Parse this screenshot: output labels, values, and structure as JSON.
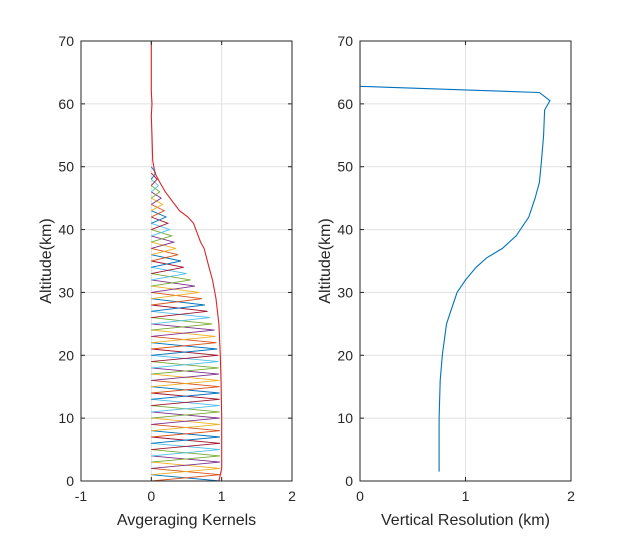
{
  "chart_data": [
    {
      "type": "line",
      "xlabel": "Avgeraging Kernels",
      "ylabel": "Altitude(km)",
      "xlim": [
        -1,
        2
      ],
      "ylim": [
        0,
        70
      ],
      "xticks": [
        "-1",
        "0",
        "1",
        "2"
      ],
      "yticks": [
        "0",
        "10",
        "20",
        "30",
        "40",
        "50",
        "60",
        "70"
      ],
      "grid": true,
      "kernels": {
        "count": 50,
        "spacing_km": 1,
        "colors": [
          "#0072bd",
          "#d95319",
          "#edb120",
          "#7e2f8e",
          "#77ac30",
          "#4dbeee",
          "#a2142f"
        ],
        "peak_profile": {
          "altitude": [
            0,
            15,
            20,
            24,
            27,
            30,
            33,
            36,
            40,
            44,
            48,
            51
          ],
          "peak": [
            0.98,
            0.97,
            0.95,
            0.9,
            0.8,
            0.68,
            0.5,
            0.38,
            0.26,
            0.16,
            0.08,
            0.03
          ]
        }
      },
      "series": [
        {
          "color": "#d62728",
          "points": [
            [
              0.96,
              0
            ],
            [
              1.0,
              2
            ],
            [
              1.0,
              10
            ],
            [
              0.99,
              16
            ],
            [
              0.98,
              20
            ],
            [
              0.96,
              25
            ],
            [
              0.92,
              29
            ],
            [
              0.87,
              32
            ],
            [
              0.82,
              34
            ],
            [
              0.75,
              37
            ],
            [
              0.7,
              38
            ],
            [
              0.6,
              41
            ],
            [
              0.52,
              42
            ],
            [
              0.4,
              43
            ],
            [
              0.3,
              44.5
            ],
            [
              0.2,
              46
            ],
            [
              0.12,
              47.5
            ],
            [
              0.05,
              49
            ],
            [
              0.02,
              51
            ],
            [
              0.01,
              55
            ],
            [
              0.0,
              58
            ],
            [
              0.01,
              60
            ],
            [
              0.0,
              62
            ],
            [
              0.0,
              70
            ]
          ]
        }
      ]
    },
    {
      "type": "line",
      "xlabel": "Vertical Resolution (km)",
      "ylabel": "Altitude(km)",
      "xlim": [
        0,
        2
      ],
      "ylim": [
        0,
        70
      ],
      "xticks": [
        "0",
        "1",
        "2"
      ],
      "yticks": [
        "0",
        "10",
        "20",
        "30",
        "40",
        "50",
        "60",
        "70"
      ],
      "grid": true,
      "series": [
        {
          "color": "#0072bd",
          "points": [
            [
              0.75,
              1.5
            ],
            [
              0.75,
              10
            ],
            [
              0.76,
              16
            ],
            [
              0.78,
              20
            ],
            [
              0.82,
              25
            ],
            [
              0.86,
              27
            ],
            [
              0.92,
              30
            ],
            [
              1.0,
              32
            ],
            [
              1.1,
              34
            ],
            [
              1.2,
              35.5
            ],
            [
              1.35,
              37
            ],
            [
              1.48,
              39
            ],
            [
              1.6,
              42
            ],
            [
              1.66,
              45
            ],
            [
              1.7,
              47.5
            ],
            [
              1.72,
              51
            ],
            [
              1.74,
              55
            ],
            [
              1.75,
              59
            ],
            [
              1.8,
              60.5
            ],
            [
              1.7,
              61.8
            ],
            [
              0.0,
              62.8
            ],
            [
              0.0,
              64.5
            ],
            [
              0.0,
              70
            ]
          ]
        }
      ]
    }
  ]
}
